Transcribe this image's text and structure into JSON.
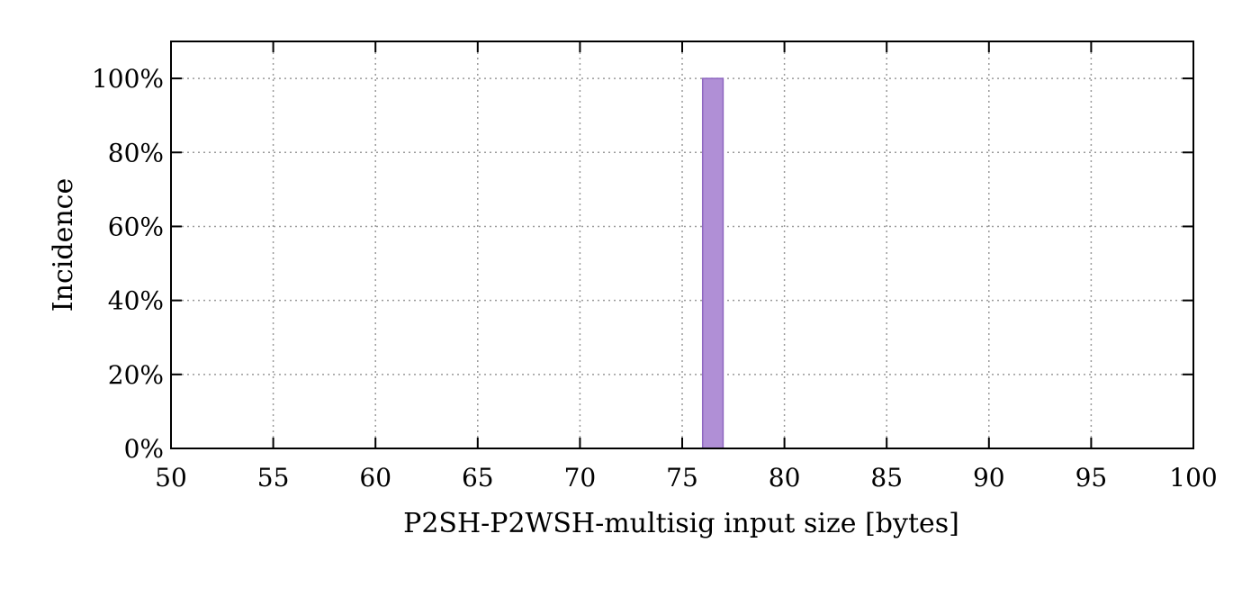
{
  "chart_data": {
    "type": "bar",
    "title": "",
    "xlabel": "P2SH-P2WSH-multisig input size [bytes]",
    "ylabel": "Incidence",
    "xlim": [
      50,
      100
    ],
    "ylim": [
      0,
      110
    ],
    "x_ticks": [
      50,
      55,
      60,
      65,
      70,
      75,
      80,
      85,
      90,
      95,
      100
    ],
    "x_tick_labels": [
      "50",
      "55",
      "60",
      "65",
      "70",
      "75",
      "80",
      "85",
      "90",
      "95",
      "100"
    ],
    "y_ticks": [
      0,
      20,
      40,
      60,
      80,
      100
    ],
    "y_tick_labels": [
      "0%",
      "20%",
      "40%",
      "60%",
      "80%",
      "100%"
    ],
    "grid": true,
    "bin_width": 1,
    "bars": [
      {
        "x": 76,
        "value": 100
      }
    ],
    "colors": {
      "bar_fill": "#b08fd6",
      "bar_stroke": "#8e67c0"
    }
  }
}
